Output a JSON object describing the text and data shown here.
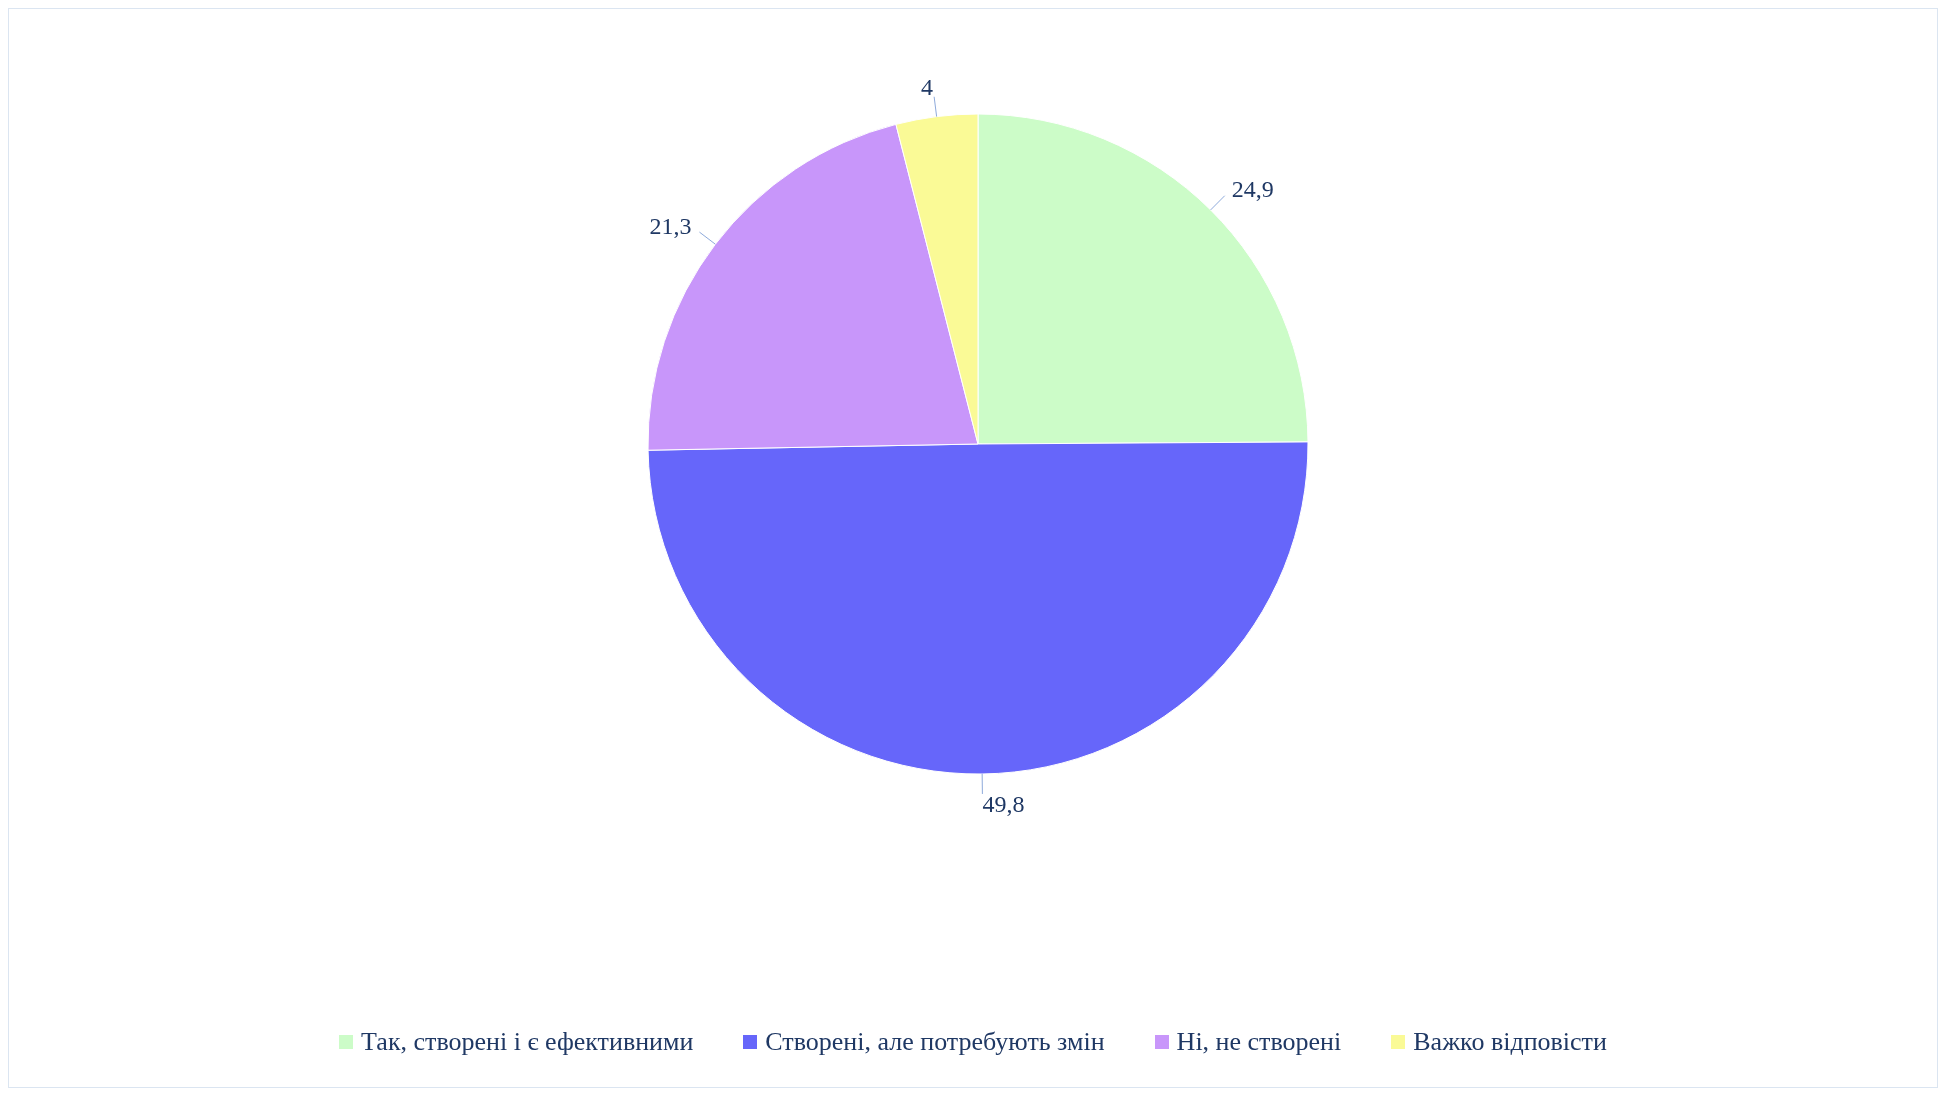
{
  "chart_data": {
    "type": "pie",
    "categories": [
      "Так, створені і є ефективними",
      "Створені, але потребують змін",
      "Ні, не створені",
      "Важко відповісти"
    ],
    "values": [
      24.9,
      49.8,
      21.3,
      4
    ],
    "value_labels": [
      "24,9",
      "49,8",
      "21,3",
      "4"
    ],
    "colors": [
      "#ccfcc8",
      "#6666fa",
      "#c896fa",
      "#fafa96"
    ],
    "legend": "bottom"
  }
}
